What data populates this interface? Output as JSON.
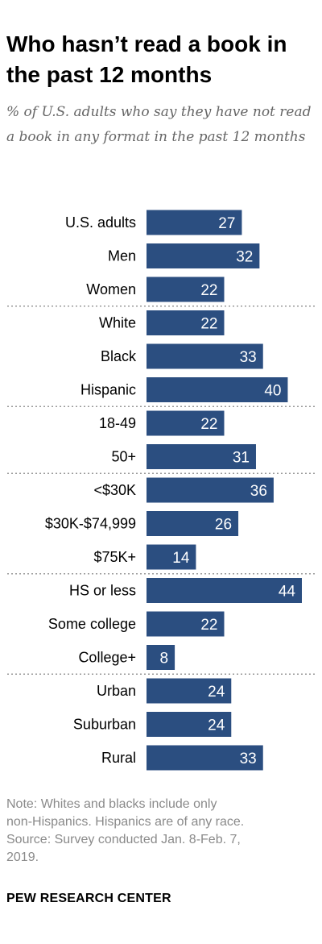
{
  "header": {
    "title": "Who hasn’t read a book in the past 12 months",
    "subtitle": "% of U.S. adults who say they have not read a book in any format in the past 12 months"
  },
  "chart_data": {
    "type": "bar",
    "orientation": "horizontal",
    "categories": [
      "U.S. adults",
      "Men",
      "Women",
      "White",
      "Black",
      "Hispanic",
      "18-49",
      "50+",
      "<$30K",
      "$30K-$74,999",
      "$75K+",
      "HS or less",
      "Some college",
      "College+",
      "Urban",
      "Suburban",
      "Rural"
    ],
    "values": [
      27,
      32,
      22,
      22,
      33,
      40,
      22,
      31,
      36,
      26,
      14,
      44,
      22,
      8,
      24,
      24,
      33
    ],
    "group_sizes": [
      3,
      3,
      2,
      3,
      3,
      3
    ],
    "title": "Who hasn’t read a book in the past 12 months",
    "subtitle": "% of U.S. adults who say they have not read a book in any format in the past 12 months",
    "xlabel": "",
    "ylabel": "",
    "xlim": [
      0,
      44
    ],
    "grid": false,
    "legend": "none",
    "data_labels": true,
    "bar_color": "#2b4e80",
    "label_color": "#ffffff",
    "separator_color": "#999999"
  },
  "notes": {
    "note_lines": [
      "Note: Whites and blacks include only",
      "non-Hispanics. Hispanics are of any race.",
      "Source: Survey conducted Jan. 8-Feb. 7,",
      "2019."
    ],
    "source_org": "PEW RESEARCH CENTER"
  }
}
